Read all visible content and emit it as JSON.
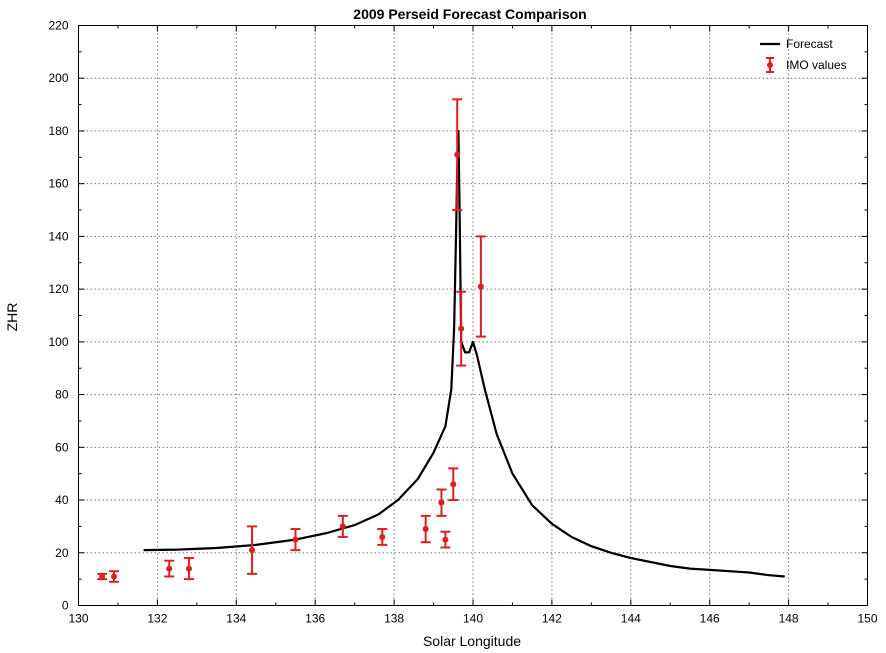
{
  "chart_data": {
    "type": "line",
    "title": "2009 Perseid Forecast Comparison",
    "xlabel": "Solar Longitude",
    "ylabel": "ZHR",
    "xlim": [
      130,
      150
    ],
    "ylim": [
      0,
      220
    ],
    "xticks": [
      "130",
      "132",
      "134",
      "136",
      "138",
      "140",
      "142",
      "144",
      "146",
      "148",
      "150"
    ],
    "yticks": [
      "0",
      "20",
      "40",
      "60",
      "80",
      "100",
      "120",
      "140",
      "160",
      "180",
      "200",
      "220"
    ],
    "grid": true,
    "legend_position": "top-right",
    "series": [
      {
        "name": "Forecast",
        "kind": "line",
        "color": "#000000",
        "x": [
          131.65,
          132.5,
          133.5,
          134.5,
          135.5,
          136.3,
          137.0,
          137.6,
          138.1,
          138.6,
          139.0,
          139.3,
          139.45,
          139.52,
          139.57,
          139.6,
          139.63,
          139.66,
          139.7,
          139.8,
          139.9,
          140.0,
          140.1,
          140.3,
          140.6,
          141.0,
          141.5,
          142.0,
          142.5,
          143.0,
          143.5,
          144.0,
          144.5,
          145.0,
          145.5,
          146.0,
          146.5,
          147.0,
          147.5,
          147.9
        ],
        "y": [
          21,
          21.2,
          21.8,
          23,
          25,
          27.5,
          30.5,
          34.5,
          40,
          48,
          58,
          68,
          82,
          105,
          140,
          165,
          180,
          150,
          100,
          96,
          96,
          100,
          95,
          82,
          65,
          50,
          38,
          31,
          26,
          22.5,
          20,
          18,
          16.5,
          15,
          14,
          13.5,
          13,
          12.5,
          11.5,
          11
        ]
      },
      {
        "name": "IMO values",
        "kind": "errorbar",
        "color": "#dd1f1f",
        "points": [
          {
            "x": 130.6,
            "y": 11,
            "low": 10,
            "high": 12
          },
          {
            "x": 130.9,
            "y": 11,
            "low": 9,
            "high": 13
          },
          {
            "x": 132.3,
            "y": 14,
            "low": 11,
            "high": 17
          },
          {
            "x": 132.8,
            "y": 14,
            "low": 10,
            "high": 18
          },
          {
            "x": 134.4,
            "y": 21,
            "low": 12,
            "high": 30
          },
          {
            "x": 135.5,
            "y": 25,
            "low": 21,
            "high": 29
          },
          {
            "x": 136.7,
            "y": 30,
            "low": 26,
            "high": 34
          },
          {
            "x": 137.7,
            "y": 26,
            "low": 23,
            "high": 29
          },
          {
            "x": 138.8,
            "y": 29,
            "low": 24,
            "high": 34
          },
          {
            "x": 139.2,
            "y": 39,
            "low": 34,
            "high": 44
          },
          {
            "x": 139.3,
            "y": 25,
            "low": 22,
            "high": 28
          },
          {
            "x": 139.5,
            "y": 46,
            "low": 40,
            "high": 52
          },
          {
            "x": 139.6,
            "y": 171,
            "low": 150,
            "high": 192
          },
          {
            "x": 139.7,
            "y": 105,
            "low": 91,
            "high": 119
          },
          {
            "x": 140.2,
            "y": 121,
            "low": 102,
            "high": 140
          }
        ]
      }
    ]
  }
}
